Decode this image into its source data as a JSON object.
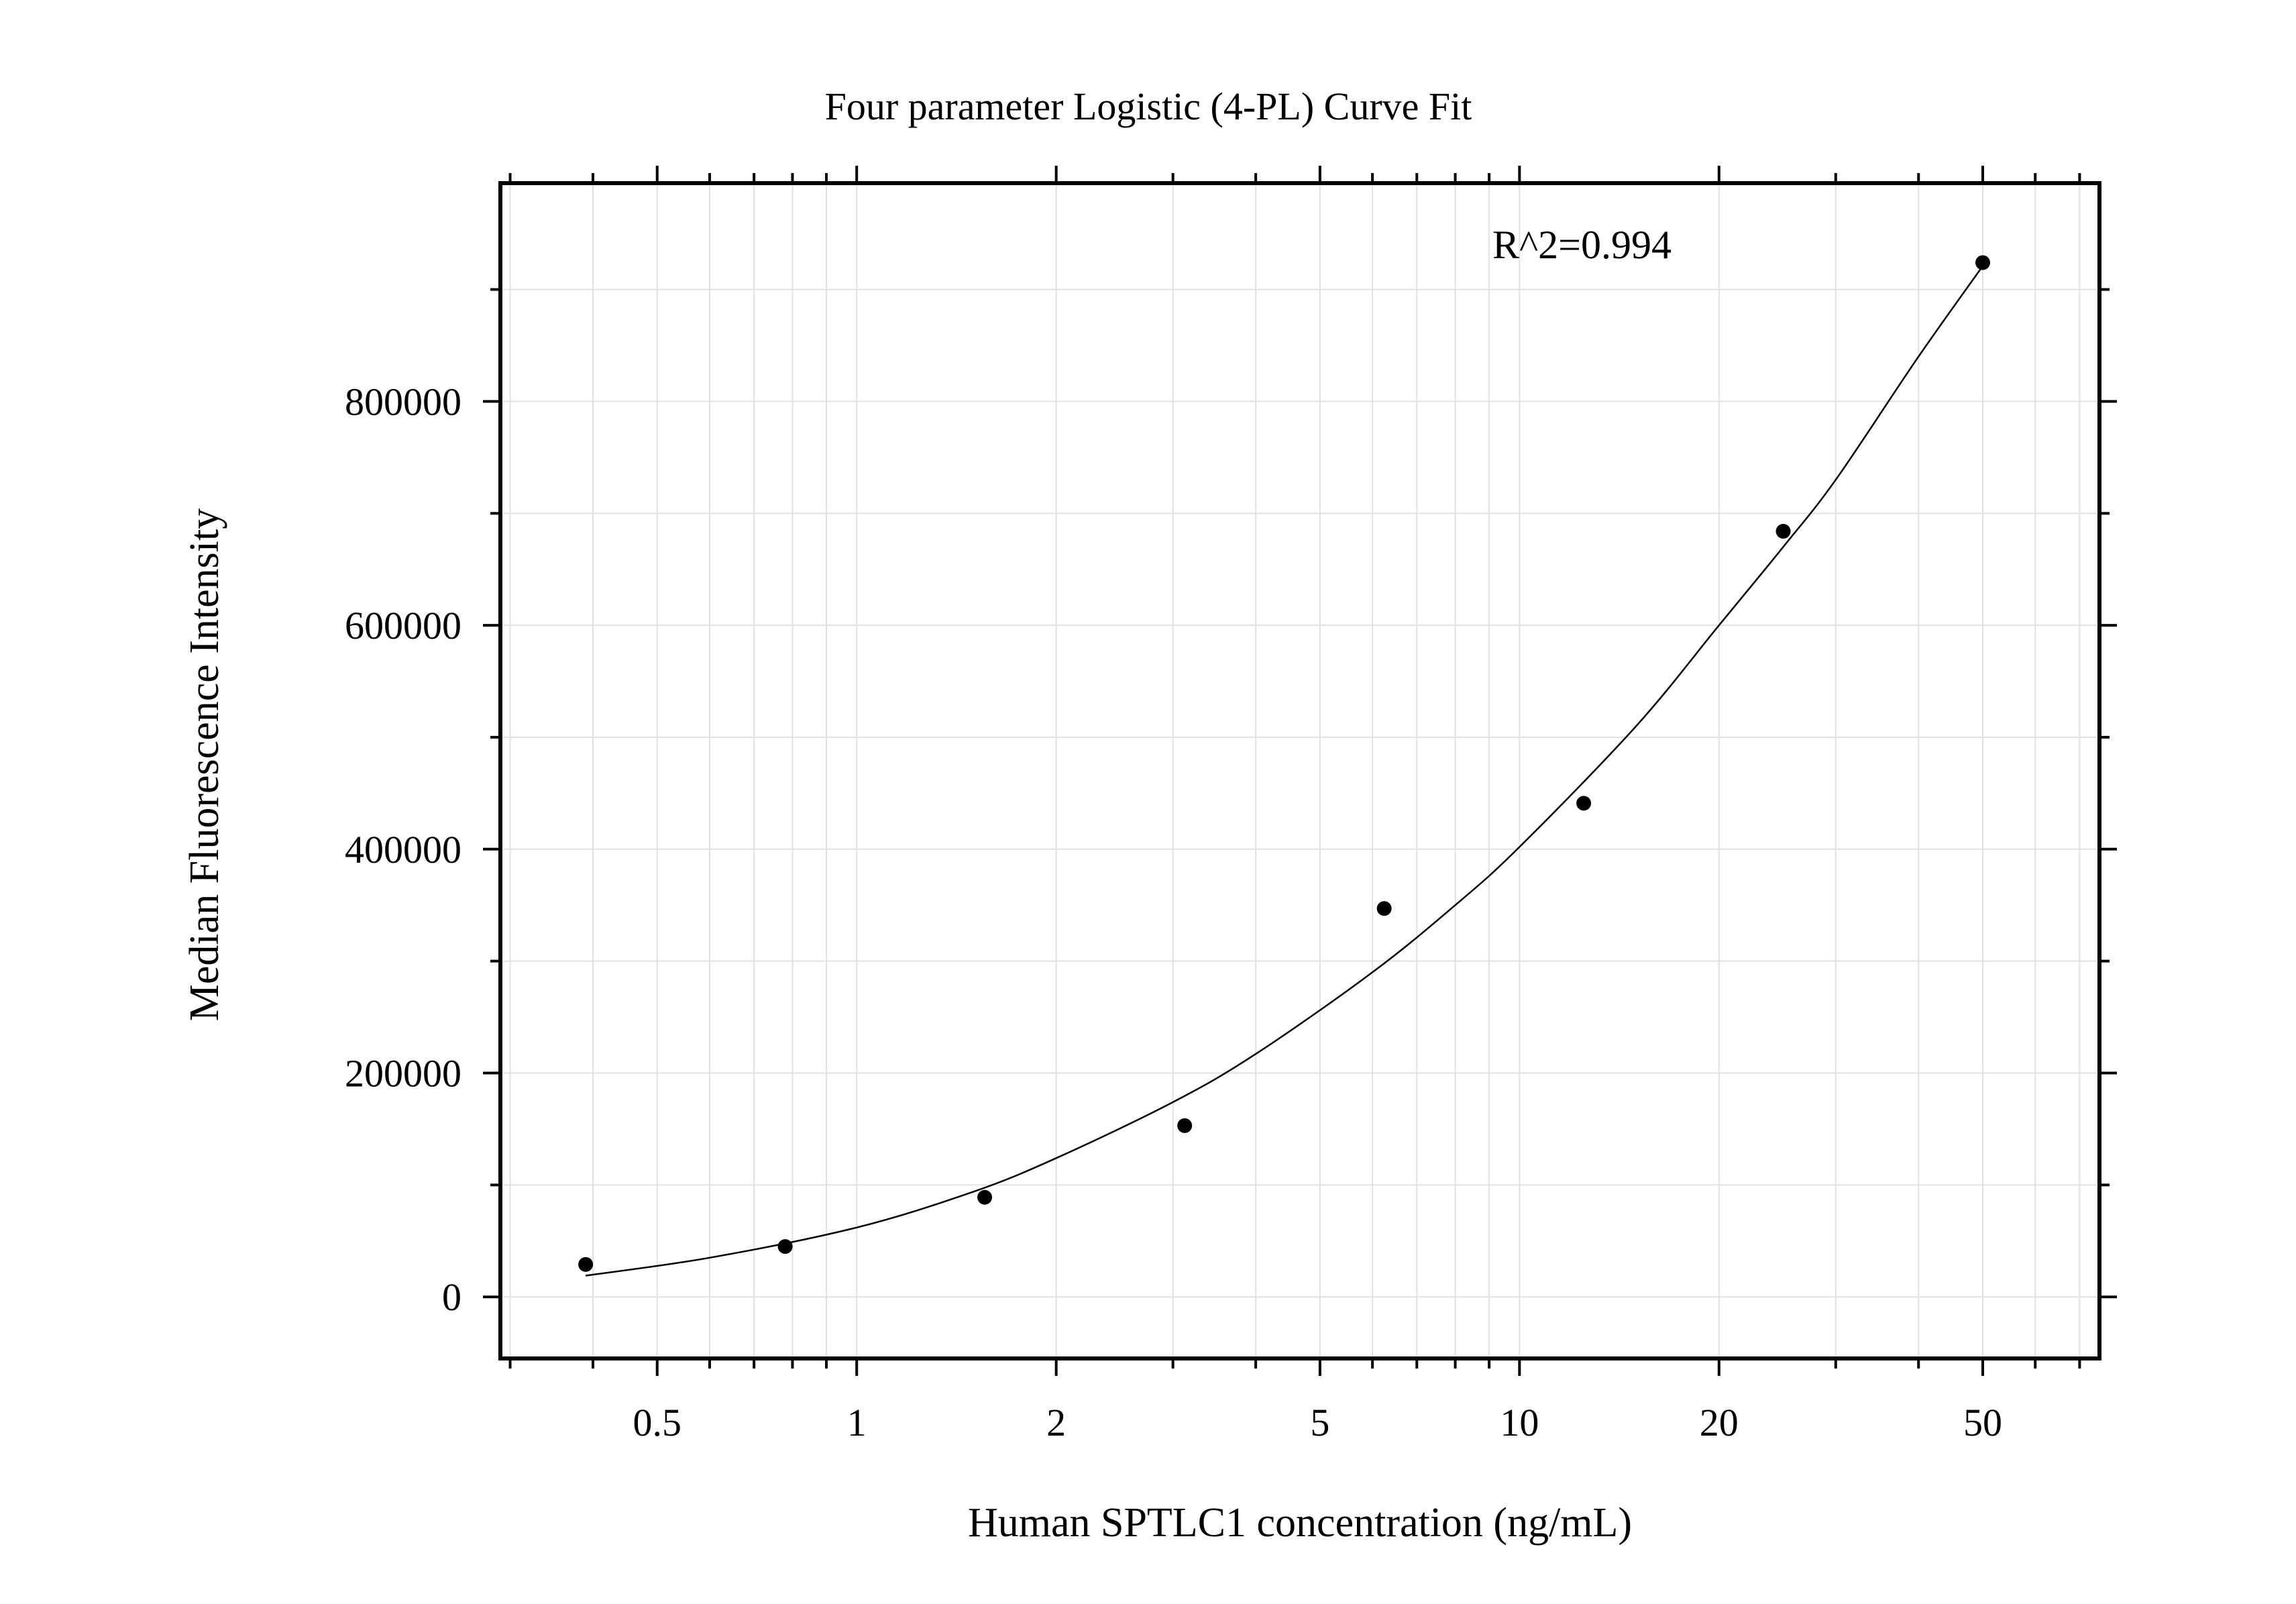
{
  "chart_data": {
    "type": "scatter",
    "title": "Four parameter Logistic (4-PL) Curve Fit",
    "xlabel": "Human SPTLC1 concentration (ng/mL)",
    "ylabel": "Median Fluorescence Intensity",
    "x_scale": "log",
    "xlim": [
      0.29,
      75
    ],
    "ylim": [
      -55000,
      995000
    ],
    "x_ticks": [
      0.5,
      1,
      2,
      5,
      10,
      20,
      50
    ],
    "x_tick_labels": [
      "0.5",
      "1",
      "2",
      "5",
      "10",
      "20",
      "50"
    ],
    "y_ticks": [
      0,
      200000,
      400000,
      600000,
      800000
    ],
    "y_tick_labels": [
      "0",
      "200000",
      "400000",
      "600000",
      "800000"
    ],
    "grid": true,
    "annotation": "R^2=0.994",
    "series": [
      {
        "kind": "points",
        "x": [
          0.39,
          0.78,
          1.56,
          3.125,
          6.25,
          12.5,
          25,
          50
        ],
        "y": [
          29000,
          45000,
          89000,
          153000,
          347000,
          441000,
          684000,
          924000
        ]
      },
      {
        "kind": "fit-curve",
        "x": [
          0.39,
          0.6,
          1.0,
          1.5,
          2.0,
          3.0,
          4.0,
          6.0,
          8.0,
          10.0,
          15.0,
          20.0,
          25.0,
          30.0,
          40.0,
          50.0
        ],
        "y": [
          19000,
          35000,
          62000,
          94000,
          124000,
          174000,
          217000,
          290000,
          350000,
          402000,
          510000,
          600000,
          670000,
          730000,
          840000,
          921000
        ]
      }
    ]
  }
}
